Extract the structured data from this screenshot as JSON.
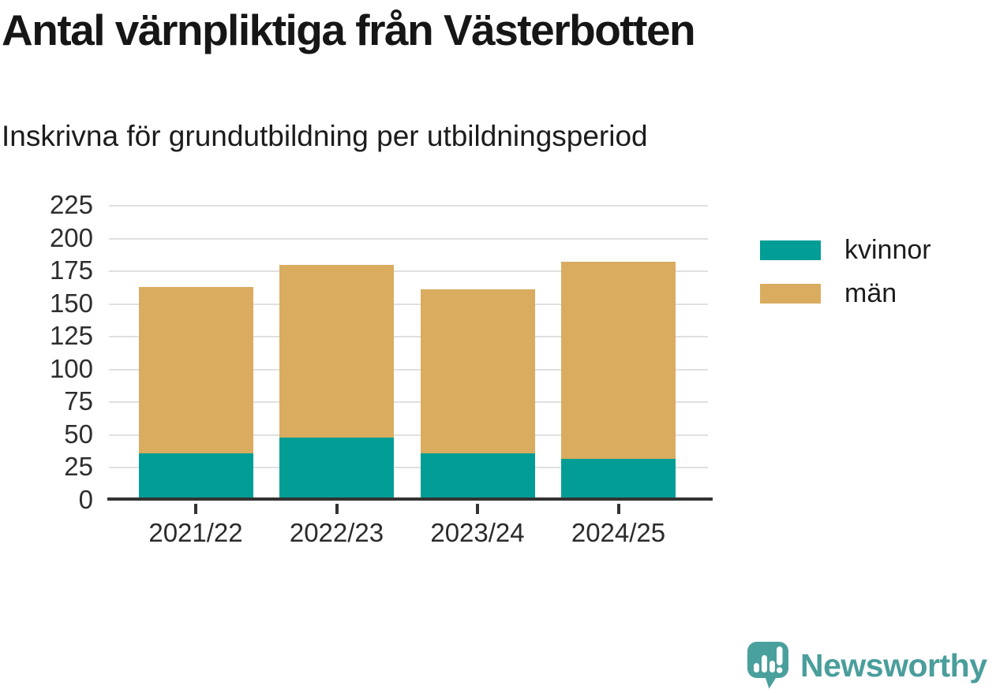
{
  "header": {
    "title": "Antal värnpliktiga från Västerbotten",
    "subtitle": "Inskrivna för grundutbildning per utbildningsperiod"
  },
  "chart_data": {
    "type": "bar",
    "stacked": true,
    "title": "Antal värnpliktiga från Västerbotten",
    "subtitle": "Inskrivna för grundutbildning per utbildningsperiod",
    "categories": [
      "2021/22",
      "2022/23",
      "2023/24",
      "2024/25"
    ],
    "series": [
      {
        "name": "kvinnor",
        "color": "#029e96",
        "values": [
          36,
          48,
          36,
          32
        ]
      },
      {
        "name": "män",
        "color": "#d9ac60",
        "values": [
          127,
          132,
          125,
          150
        ]
      }
    ],
    "totals": [
      163,
      180,
      161,
      182
    ],
    "xlabel": "",
    "ylabel": "",
    "ylim": [
      0,
      225
    ],
    "yticks": [
      0,
      25,
      50,
      75,
      100,
      125,
      150,
      175,
      200,
      225
    ],
    "grid": true,
    "legend_position": "right"
  },
  "footer": {
    "brand": "Newsworthy",
    "logo_icon": "newsworthy-speech-bubble-bar-chart-icon"
  },
  "colors": {
    "kvinnor": "#029e96",
    "man": "#d9ac60",
    "text": "#1c1c1c",
    "axis": "#333333",
    "grid": "#e0e0e0",
    "logo_teal": "#4aa09d",
    "brand_text": "#4a9e9c",
    "background": "#ffffff"
  }
}
